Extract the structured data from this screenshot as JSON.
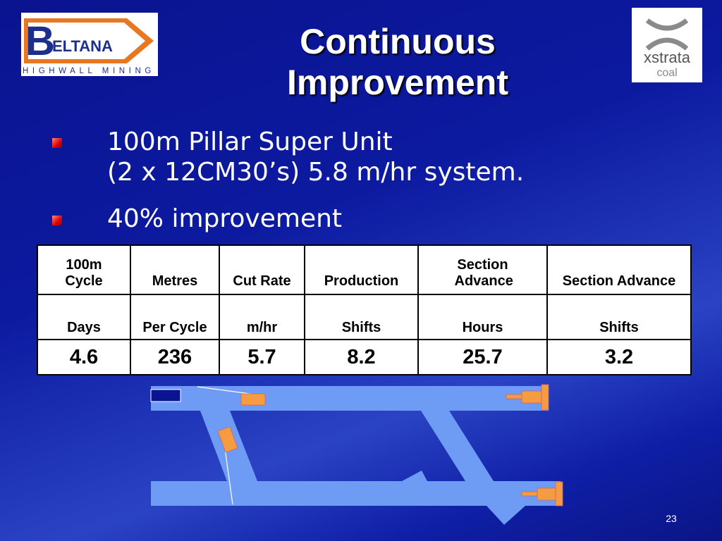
{
  "header": {
    "title": [
      "Continuous",
      "Improvement"
    ]
  },
  "logos": {
    "left": {
      "letter": "B",
      "name": "ELTANA",
      "tagline": "HIGHWALL MINING"
    },
    "right": {
      "name": "xstrata",
      "sub": "coal"
    }
  },
  "bullets": [
    [
      "100m Pillar Super Unit",
      "(2 x 12CM30’s) 5.8 m/hr system."
    ],
    [
      "40% improvement"
    ]
  ],
  "table": {
    "rows": [
      [
        "100m Cycle",
        "Metres",
        "Cut Rate",
        "Production",
        "Section Advance",
        "Section Advance"
      ],
      [
        "Days",
        "Per Cycle",
        "m/hr",
        "Shifts",
        "Hours",
        "Shifts"
      ],
      [
        "4.6",
        "236",
        "5.7",
        "8.2",
        "25.7",
        "3.2"
      ]
    ]
  },
  "page_number": "23"
}
